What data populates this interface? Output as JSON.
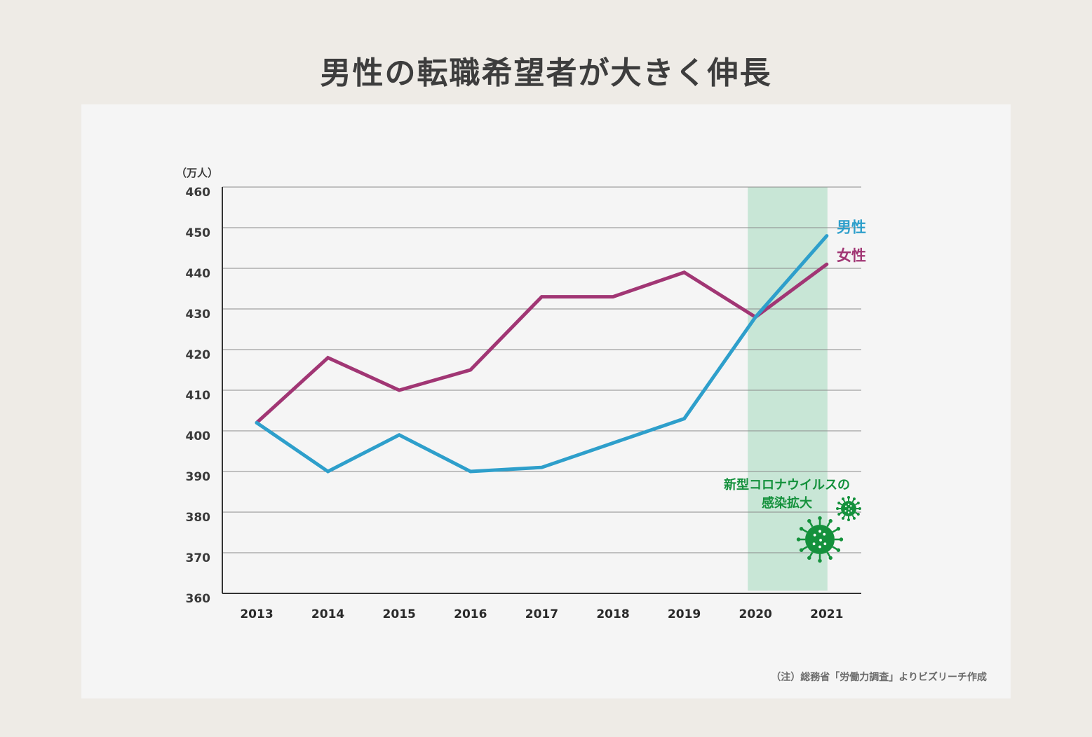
{
  "title": "男性の転職希望者が大きく伸長",
  "chart_data": {
    "type": "line",
    "title": "男性の転職希望者が大きく伸長",
    "ylabel": "（万人）",
    "xlabel": "",
    "ylim": [
      360,
      460
    ],
    "yticks": [
      360,
      370,
      380,
      390,
      400,
      410,
      420,
      430,
      440,
      450,
      460
    ],
    "categories": [
      "2013",
      "2014",
      "2015",
      "2016",
      "2017",
      "2018",
      "2019",
      "2020",
      "2021"
    ],
    "grid": true,
    "series": [
      {
        "name": "男性",
        "color": "#2e9fcb",
        "values": [
          402,
          390,
          399,
          390,
          391,
          397,
          403,
          428,
          448
        ]
      },
      {
        "name": "女性",
        "color": "#a13674",
        "values": [
          402,
          418,
          410,
          415,
          433,
          433,
          439,
          428,
          441
        ]
      }
    ],
    "highlight": {
      "from": "2020",
      "to": "2021",
      "color": "#c8e6d6",
      "label_line1": "新型コロナウイルスの",
      "label_line2": "感染拡大",
      "label_color": "#14913c",
      "icon": "virus-icon"
    }
  },
  "note": "（注）総務省「労働力調査」よりビズリーチ作成"
}
